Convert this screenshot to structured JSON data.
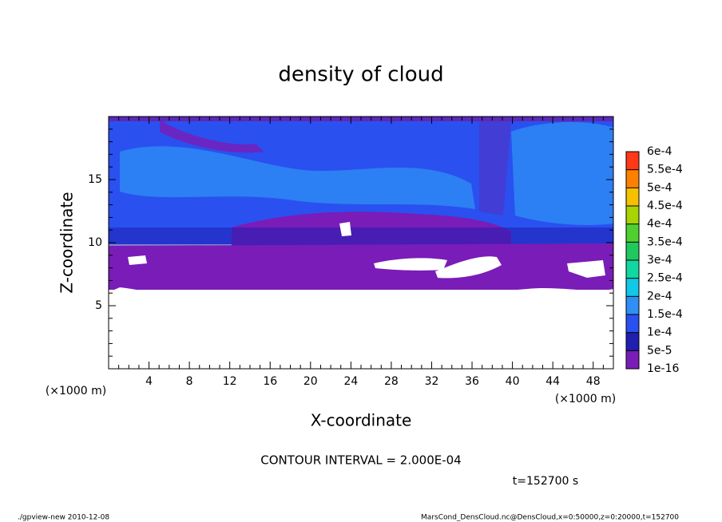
{
  "chart_data": {
    "type": "contour",
    "title": "density of cloud",
    "xlabel": "X-coordinate",
    "ylabel": "Z-coordinate",
    "x_unit": "(×1000 m)",
    "y_unit": "(×1000 m)",
    "xlim": [
      0,
      50
    ],
    "ylim": [
      0,
      20
    ],
    "xticks": [
      4,
      8,
      12,
      16,
      20,
      24,
      28,
      32,
      36,
      40,
      44,
      48
    ],
    "yticks": [
      5,
      10,
      15
    ],
    "xminorticks": [
      1,
      2,
      3,
      5,
      6,
      7,
      9,
      10,
      11,
      13,
      14,
      15,
      17,
      18,
      19,
      21,
      22,
      23,
      25,
      26,
      27,
      29,
      30,
      31,
      33,
      34,
      35,
      37,
      38,
      39,
      41,
      42,
      43,
      45,
      46,
      47,
      49
    ],
    "yminorticks": [
      1,
      2,
      3,
      4,
      6,
      7,
      8,
      9,
      11,
      12,
      13,
      14,
      16,
      17,
      18,
      19
    ],
    "colorbar": {
      "levels": [
        {
          "value": 1e-16,
          "label": "1e-16"
        },
        {
          "value": 5e-05,
          "label": "5e-5"
        },
        {
          "value": 0.0001,
          "label": "1e-4"
        },
        {
          "value": 0.00015,
          "label": "1.5e-4"
        },
        {
          "value": 0.0002,
          "label": "2e-4"
        },
        {
          "value": 0.00025,
          "label": "2.5e-4"
        },
        {
          "value": 0.0003,
          "label": "3e-4"
        },
        {
          "value": 0.00035,
          "label": "3.5e-4"
        },
        {
          "value": 0.0004,
          "label": "4e-4"
        },
        {
          "value": 0.00045,
          "label": "4.5e-4"
        },
        {
          "value": 0.0005,
          "label": "5e-4"
        },
        {
          "value": 0.00055,
          "label": "5.5e-4"
        },
        {
          "value": 0.0006,
          "label": "6e-4"
        }
      ],
      "colors": [
        "#7a1cb8",
        "#1f1fb0",
        "#2a50f0",
        "#2f8ff5",
        "#10c8e8",
        "#10d8a0",
        "#20c860",
        "#50d030",
        "#a8d400",
        "#f4c000",
        "#ff8000",
        "#ff3818",
        "#ff8c8c"
      ]
    },
    "contour_interval": "CONTOUR INTERVAL = 2.000E-04",
    "time_label": "t=152700 s",
    "footer_left": "./gpview-new  2010-12-08",
    "footer_right": "MarsCond_DensCloud.nc@DensCloud,x=0:50000,z=0:20000,t=152700"
  }
}
